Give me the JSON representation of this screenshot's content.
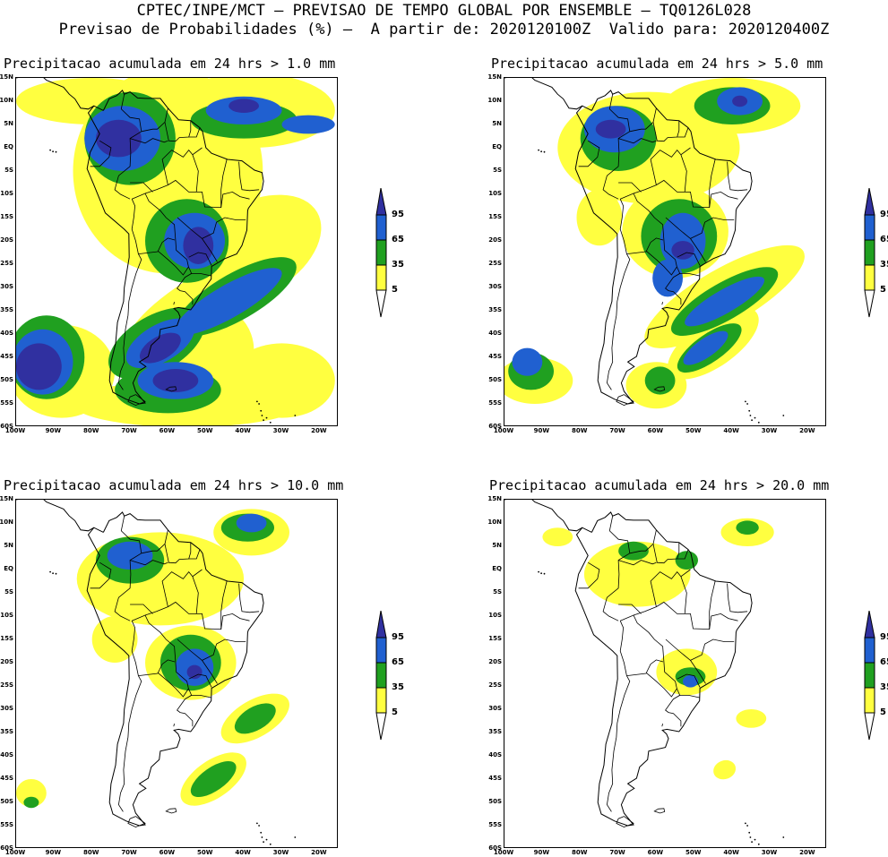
{
  "header": {
    "line1": "CPTEC/INPE/MCT – PREVISAO DE TEMPO GLOBAL POR ENSEMBLE – TQ0126L028",
    "line2": "Previsao de Probabilidades (%) –  A partir de: 2020120100Z  Valido para: 2020120400Z"
  },
  "colors": {
    "c5": "#ffff40",
    "c35": "#20a020",
    "c65": "#2060d0",
    "c95": "#3030a0",
    "land_line": "#000000"
  },
  "axes": {
    "lat_labels": [
      "15N",
      "10N",
      "5N",
      "EQ",
      "5S",
      "10S",
      "15S",
      "20S",
      "25S",
      "30S",
      "35S",
      "40S",
      "45S",
      "50S",
      "55S",
      "60S"
    ],
    "lon_labels": [
      "100W",
      "90W",
      "80W",
      "70W",
      "60W",
      "50W",
      "40W",
      "30W",
      "20W"
    ]
  },
  "colorbar": {
    "levels": [
      "95",
      "65",
      "35",
      "5"
    ]
  },
  "panels": [
    {
      "id": "p1",
      "title": "Precipitacao acumulada em 24 hrs > 1.0 mm"
    },
    {
      "id": "p2",
      "title": "Precipitacao acumulada em 24 hrs > 5.0 mm"
    },
    {
      "id": "p3",
      "title": "Precipitacao acumulada em 24 hrs > 10.0 mm"
    },
    {
      "id": "p4",
      "title": "Precipitacao acumulada em 24 hrs > 20.0 mm"
    }
  ]
}
